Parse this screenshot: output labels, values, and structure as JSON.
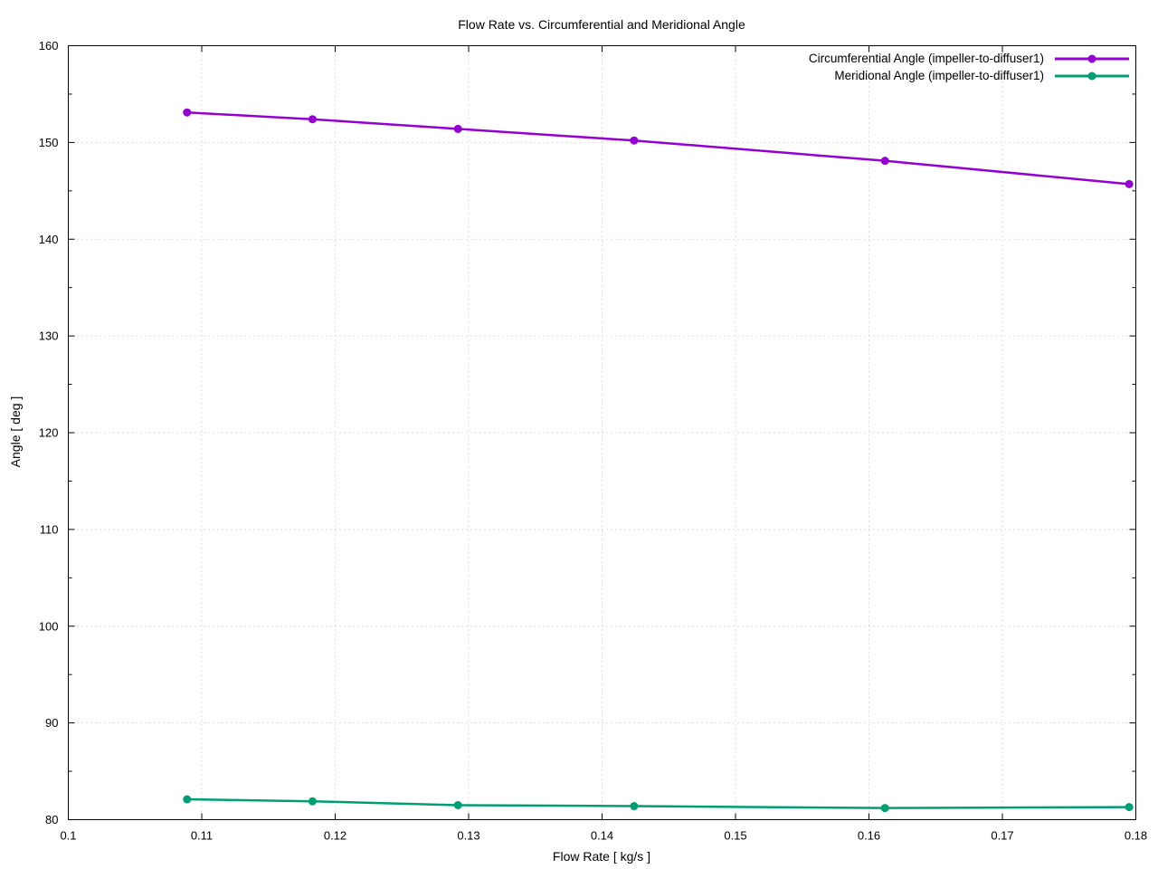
{
  "title": "Flow Rate vs. Circumferential and Meridional Angle",
  "axes": {
    "xlabel": "Flow Rate [ kg/s ]",
    "ylabel": "Angle [ deg ]"
  },
  "legend": {
    "entries": [
      {
        "label": "Circumferential Angle (impeller-to-diffuser1)",
        "color": "#9400d3"
      },
      {
        "label": "Meridional Angle (impeller-to-diffuser1)",
        "color": "#009e73"
      }
    ]
  },
  "colors": {
    "circumferential": "#9400d3",
    "meridional": "#009e73",
    "grid": "#bdbdbd",
    "axis": "#000000",
    "background": "#ffffff"
  },
  "chart_data": {
    "type": "line",
    "title": "Flow Rate vs. Circumferential and Meridional Angle",
    "xlabel": "Flow Rate [ kg/s ]",
    "ylabel": "Angle [ deg ]",
    "x": [
      0.1089,
      0.1183,
      0.1292,
      0.1424,
      0.1612,
      0.1795
    ],
    "series": [
      {
        "name": "Circumferential Angle (impeller-to-diffuser1)",
        "color": "#9400d3",
        "marker": "circle",
        "values": [
          153.1,
          152.4,
          151.4,
          150.2,
          148.1,
          145.7
        ]
      },
      {
        "name": "Meridional Angle (impeller-to-diffuser1)",
        "color": "#009e73",
        "marker": "circle",
        "values": [
          82.1,
          81.9,
          81.5,
          81.4,
          81.2,
          81.3
        ]
      }
    ],
    "xlim": [
      0.1,
      0.18
    ],
    "ylim": [
      80,
      160
    ],
    "xticks": {
      "values": [
        0.1,
        0.11,
        0.12,
        0.13,
        0.14,
        0.15,
        0.16,
        0.17,
        0.18
      ],
      "labels": [
        "0.1",
        "0.11",
        "0.12",
        "0.13",
        "0.14",
        "0.15",
        "0.16",
        "0.17",
        "0.18"
      ]
    },
    "yticks": {
      "values": [
        80,
        90,
        100,
        110,
        120,
        130,
        140,
        150,
        160
      ],
      "labels": [
        "80",
        "90",
        "100",
        "110",
        "120",
        "130",
        "140",
        "150",
        "160"
      ]
    },
    "y_minor_ticks": [
      85,
      95,
      105,
      115,
      125,
      135,
      145,
      155
    ],
    "grid": true,
    "grid_style": "dotted",
    "legend_position": "top-right"
  }
}
